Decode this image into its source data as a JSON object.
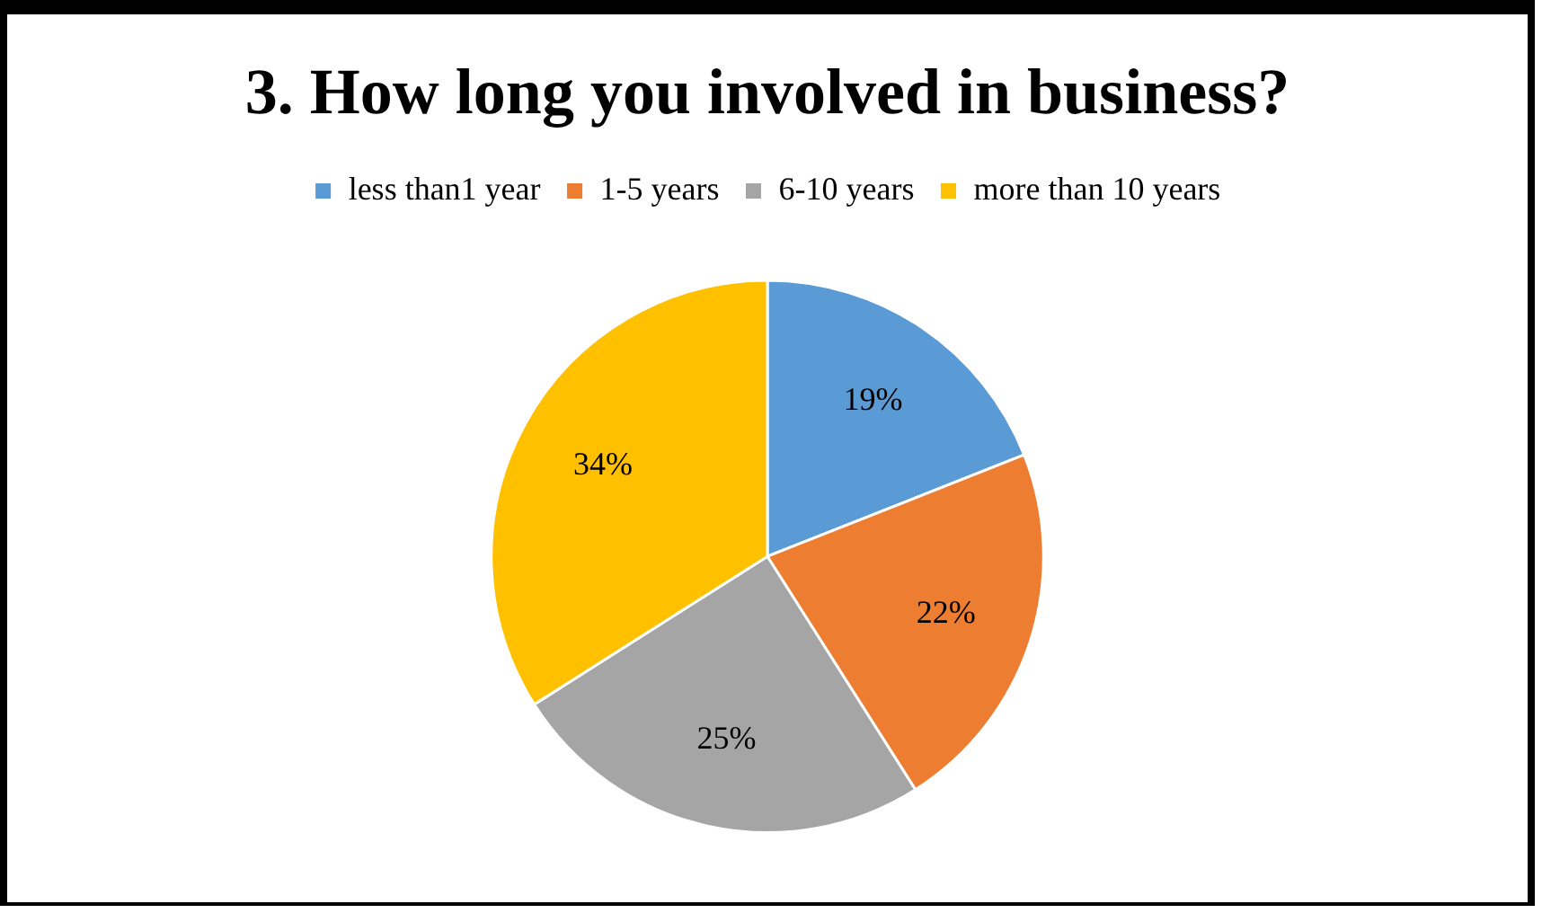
{
  "chart_data": {
    "type": "pie",
    "title": "3. How long you involved in business?",
    "categories": [
      "less than1 year",
      "1-5 years",
      "6-10 years",
      "more than 10 years"
    ],
    "values": [
      19,
      22,
      25,
      34
    ],
    "colors": [
      "#5b9bd5",
      "#ed7d31",
      "#a5a5a5",
      "#ffc000"
    ],
    "value_labels": [
      "19%",
      "22%",
      "25%",
      "34%"
    ],
    "legend": "top"
  }
}
